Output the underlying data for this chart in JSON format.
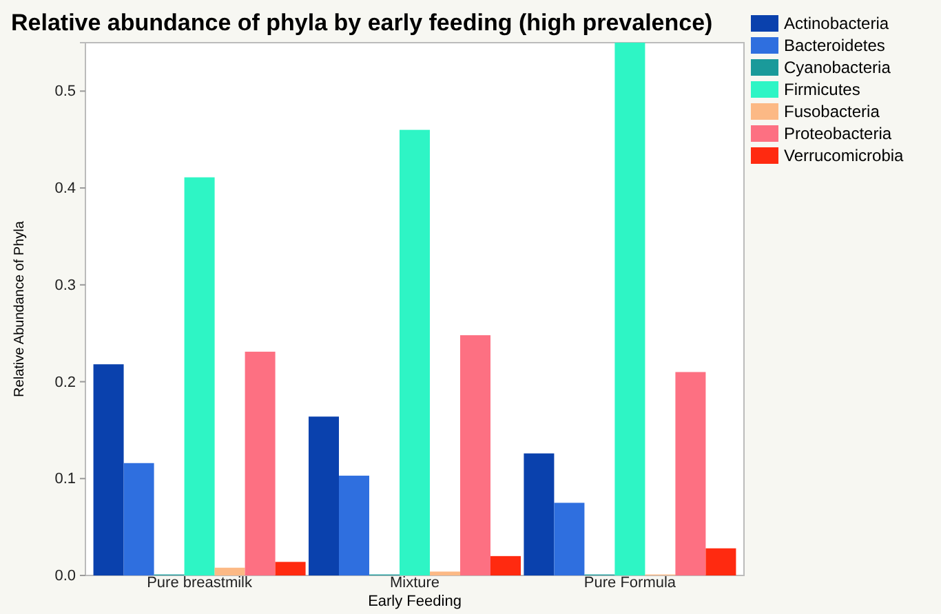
{
  "chart_data": {
    "type": "bar",
    "title": "Relative abundance of phyla by early feeding (high prevalence)",
    "xlabel": "Early Feeding",
    "ylabel": "Relative Abundance of Phyla",
    "categories": [
      "Pure breastmilk",
      "Mixture",
      "Pure Formula"
    ],
    "series": [
      {
        "name": "Actinobacteria",
        "color": "#0a41ad",
        "values": [
          0.218,
          0.164,
          0.126
        ]
      },
      {
        "name": "Bacteroidetes",
        "color": "#2f6fdf",
        "values": [
          0.116,
          0.103,
          0.075
        ]
      },
      {
        "name": "Cyanobacteria",
        "color": "#1a9a9a",
        "values": [
          0.001,
          0.001,
          0.001
        ]
      },
      {
        "name": "Firmicutes",
        "color": "#2ef5c5",
        "values": [
          0.411,
          0.46,
          0.55
        ]
      },
      {
        "name": "Fusobacteria",
        "color": "#fcb985",
        "values": [
          0.008,
          0.004,
          0.001
        ]
      },
      {
        "name": "Proteobacteria",
        "color": "#fd7082",
        "values": [
          0.231,
          0.248,
          0.21
        ]
      },
      {
        "name": "Verrucomicrobia",
        "color": "#ff2a10",
        "values": [
          0.014,
          0.02,
          0.028
        ]
      }
    ],
    "ylim": [
      0,
      0.55
    ],
    "yticks": [
      {
        "value": 0,
        "label": "0.0"
      },
      0.1,
      0.2,
      0.3,
      0.4,
      0.5
    ],
    "grid": false,
    "legend": "top right"
  }
}
